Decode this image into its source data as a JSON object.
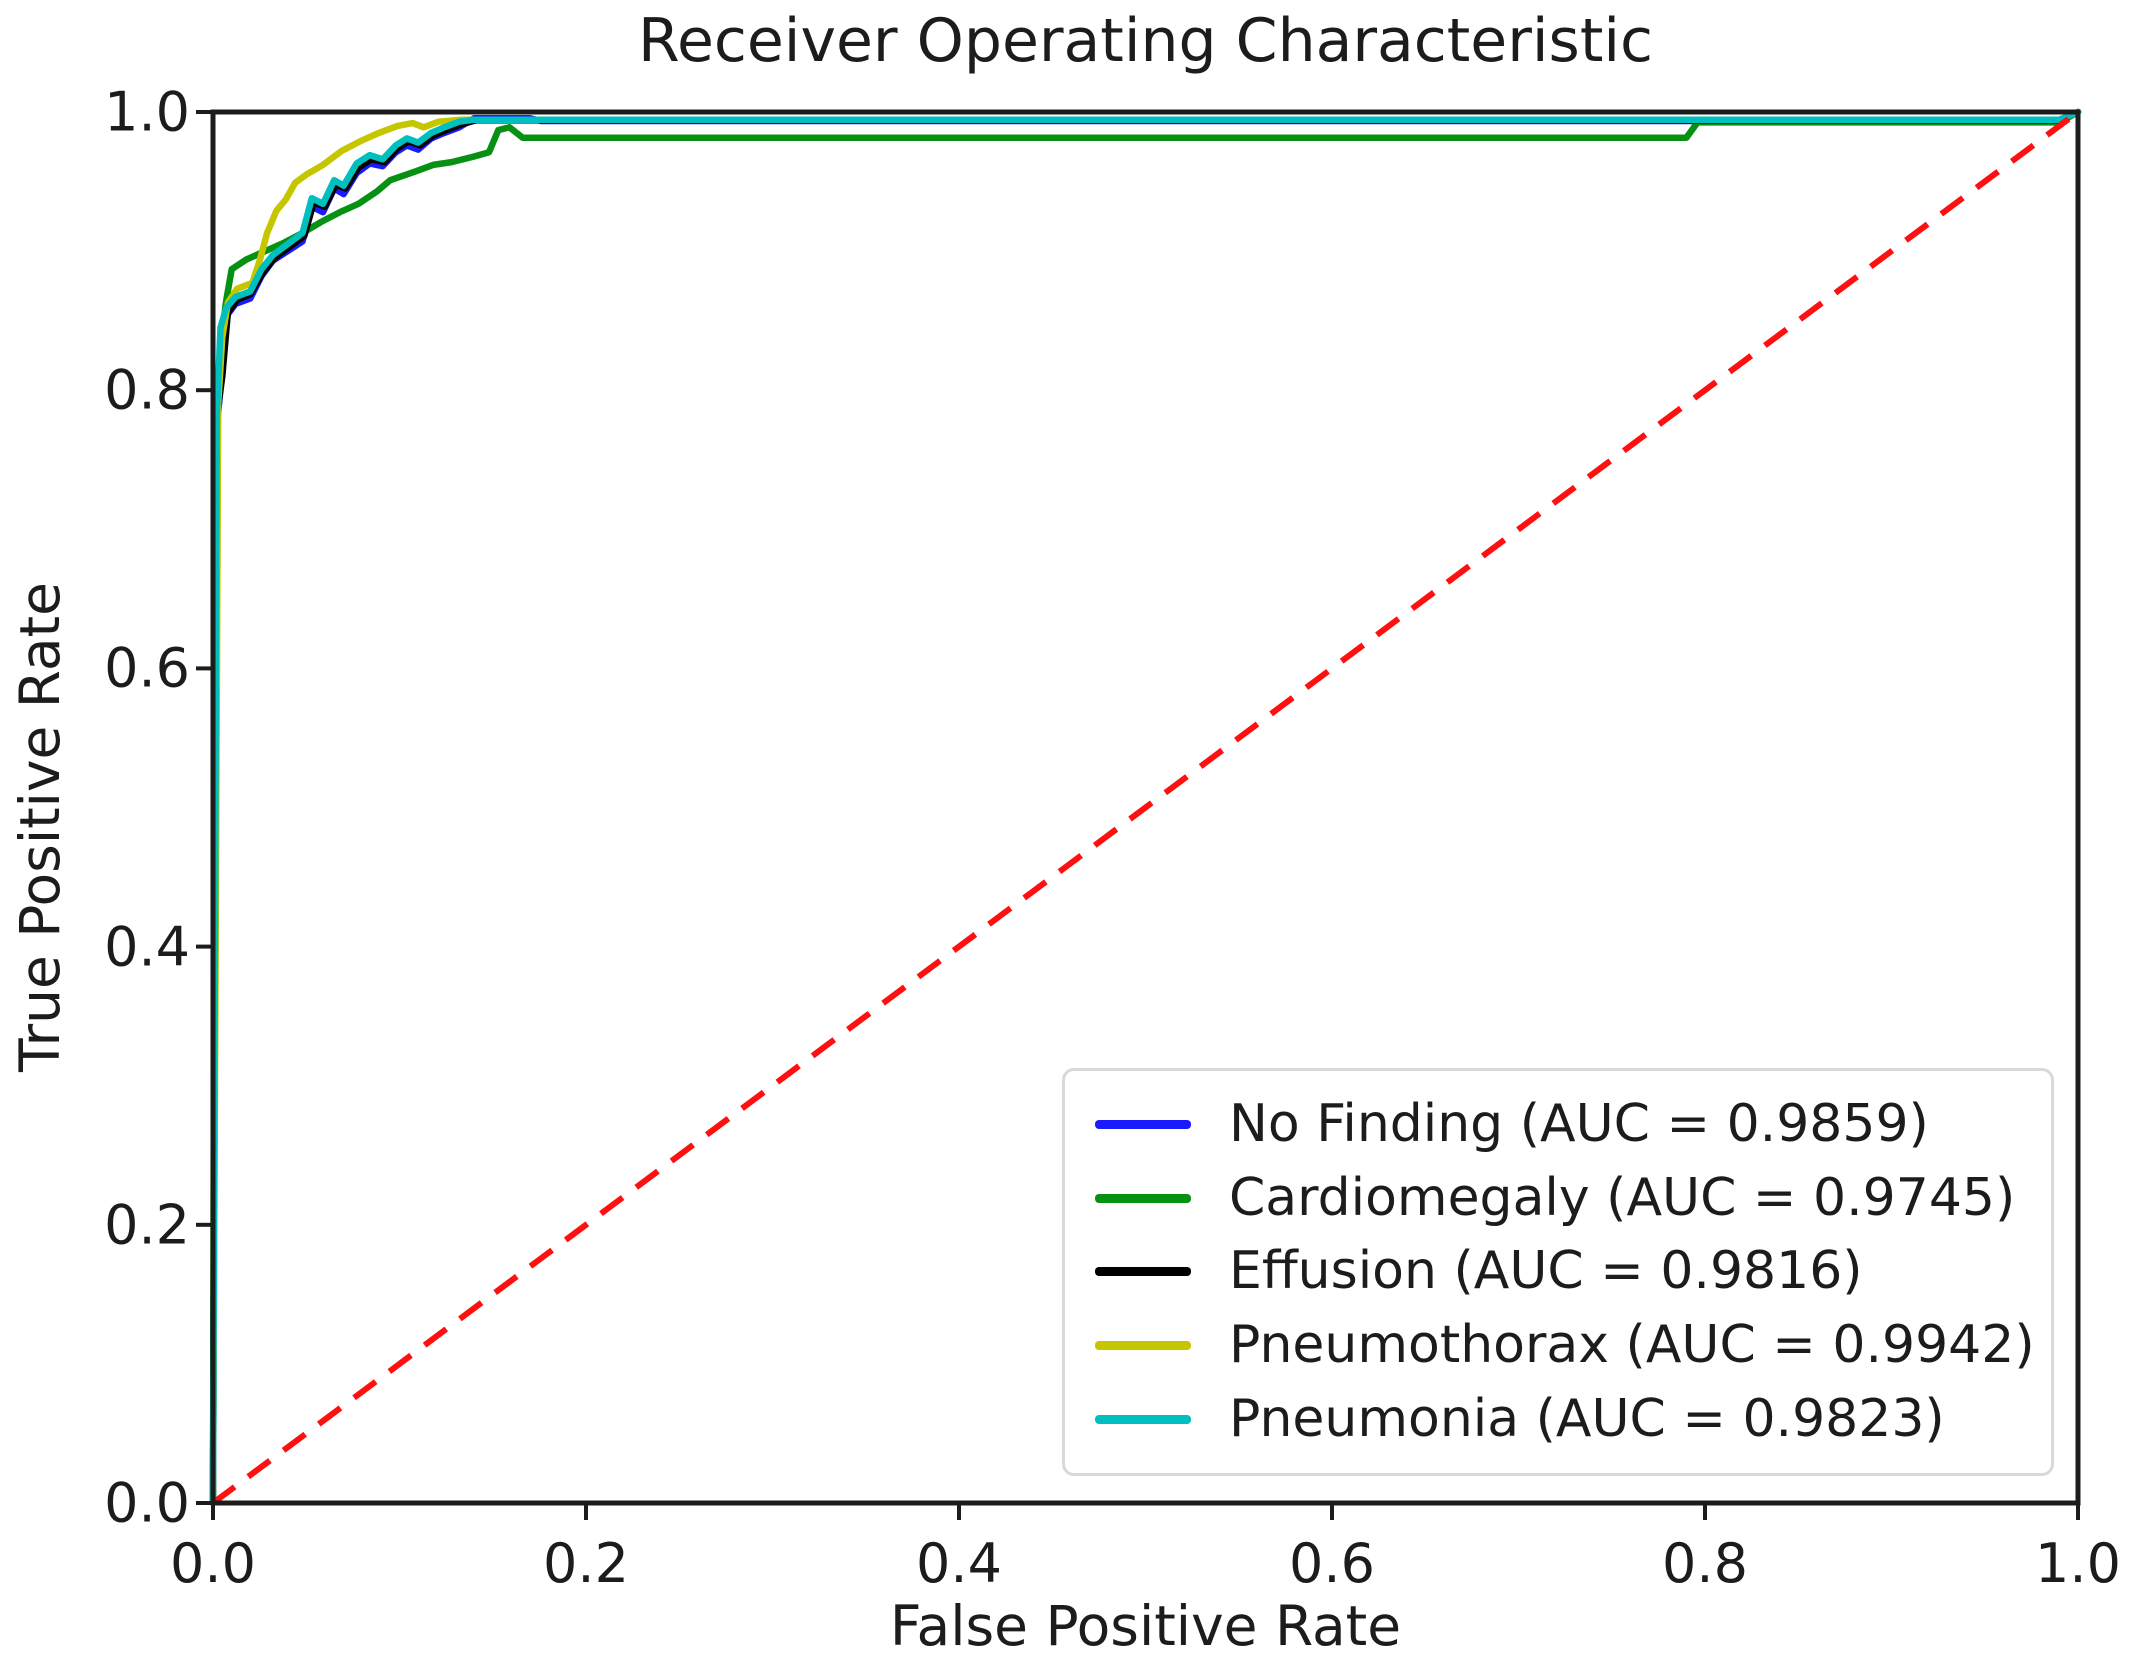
{
  "figure": {
    "background": "#ffffff",
    "text_color": "#1c1c1c",
    "axis_color": "#1c1c1c"
  },
  "chart_data": {
    "type": "line",
    "title": "Receiver Operating Characteristic",
    "xlabel": "False Positive Rate",
    "ylabel": "True Positive Rate",
    "xlim": [
      0.0,
      1.0
    ],
    "ylim": [
      0.0,
      1.0
    ],
    "xticks": [
      "0.0",
      "0.2",
      "0.4",
      "0.6",
      "0.8",
      "1.0"
    ],
    "yticks": [
      "0.0",
      "0.2",
      "0.4",
      "0.6",
      "0.8",
      "1.0"
    ],
    "grid": false,
    "legend": {
      "position": "lower right",
      "border_color": "#d9d9d9",
      "background": "#ffffff"
    },
    "reference_line": {
      "description": "chance diagonal",
      "style": "dashed",
      "color": "#ff0f0f",
      "points": [
        [
          0,
          0
        ],
        [
          1,
          1
        ]
      ]
    },
    "series": [
      {
        "name": "No Finding",
        "auc": 0.9859,
        "legend_label": "No Finding (AUC = 0.9859)",
        "color": "#1a1aff",
        "points": [
          [
            0,
            0
          ],
          [
            0.0022,
            0.775
          ],
          [
            0.004,
            0.802
          ],
          [
            0.007,
            0.853
          ],
          [
            0.012,
            0.862
          ],
          [
            0.02,
            0.866
          ],
          [
            0.026,
            0.882
          ],
          [
            0.032,
            0.893
          ],
          [
            0.04,
            0.9
          ],
          [
            0.048,
            0.907
          ],
          [
            0.053,
            0.932
          ],
          [
            0.059,
            0.928
          ],
          [
            0.065,
            0.945
          ],
          [
            0.07,
            0.941
          ],
          [
            0.077,
            0.956
          ],
          [
            0.084,
            0.963
          ],
          [
            0.091,
            0.961
          ],
          [
            0.098,
            0.971
          ],
          [
            0.104,
            0.976
          ],
          [
            0.11,
            0.973
          ],
          [
            0.117,
            0.981
          ],
          [
            0.124,
            0.985
          ],
          [
            0.132,
            0.989
          ],
          [
            0.14,
            0.9955
          ],
          [
            0.17,
            0.9955
          ],
          [
            0.176,
            0.9935
          ],
          [
            0.99,
            0.9935
          ],
          [
            1,
            1
          ]
        ]
      },
      {
        "name": "Cardiomegaly",
        "auc": 0.9745,
        "legend_label": "Cardiomegaly (AUC = 0.9745)",
        "color": "#079112",
        "points": [
          [
            0,
            0
          ],
          [
            0.0012,
            0.772
          ],
          [
            0.004,
            0.832
          ],
          [
            0.007,
            0.864
          ],
          [
            0.01,
            0.887
          ],
          [
            0.018,
            0.894
          ],
          [
            0.028,
            0.9
          ],
          [
            0.038,
            0.906
          ],
          [
            0.048,
            0.913
          ],
          [
            0.058,
            0.921
          ],
          [
            0.068,
            0.928
          ],
          [
            0.078,
            0.934
          ],
          [
            0.088,
            0.943
          ],
          [
            0.095,
            0.951
          ],
          [
            0.108,
            0.957
          ],
          [
            0.118,
            0.962
          ],
          [
            0.128,
            0.964
          ],
          [
            0.14,
            0.968
          ],
          [
            0.148,
            0.971
          ],
          [
            0.153,
            0.987
          ],
          [
            0.159,
            0.989
          ],
          [
            0.166,
            0.9815
          ],
          [
            0.79,
            0.9815
          ],
          [
            0.796,
            0.9925
          ],
          [
            0.99,
            0.9925
          ],
          [
            1,
            1
          ]
        ]
      },
      {
        "name": "Effusion",
        "auc": 0.9816,
        "legend_label": "Effusion (AUC = 0.9816)",
        "color": "#000000",
        "points": [
          [
            0,
            0
          ],
          [
            0.0018,
            0.778
          ],
          [
            0.005,
            0.81
          ],
          [
            0.008,
            0.856
          ],
          [
            0.013,
            0.865
          ],
          [
            0.02,
            0.869
          ],
          [
            0.027,
            0.885
          ],
          [
            0.033,
            0.895
          ],
          [
            0.041,
            0.903
          ],
          [
            0.049,
            0.911
          ],
          [
            0.054,
            0.935
          ],
          [
            0.06,
            0.932
          ],
          [
            0.066,
            0.948
          ],
          [
            0.071,
            0.945
          ],
          [
            0.078,
            0.96
          ],
          [
            0.085,
            0.966
          ],
          [
            0.092,
            0.964
          ],
          [
            0.099,
            0.974
          ],
          [
            0.105,
            0.979
          ],
          [
            0.111,
            0.976
          ],
          [
            0.118,
            0.983
          ],
          [
            0.125,
            0.987
          ],
          [
            0.133,
            0.991
          ],
          [
            0.141,
            0.994
          ],
          [
            0.99,
            0.994
          ],
          [
            1,
            1
          ]
        ]
      },
      {
        "name": "Pneumothorax",
        "auc": 0.9942,
        "legend_label": "Pneumothorax (AUC = 0.9942)",
        "color": "#c6c600",
        "points": [
          [
            0,
            0
          ],
          [
            0.0028,
            0.79
          ],
          [
            0.005,
            0.838
          ],
          [
            0.008,
            0.863
          ],
          [
            0.013,
            0.873
          ],
          [
            0.021,
            0.877
          ],
          [
            0.025,
            0.893
          ],
          [
            0.029,
            0.913
          ],
          [
            0.034,
            0.929
          ],
          [
            0.039,
            0.937
          ],
          [
            0.044,
            0.949
          ],
          [
            0.05,
            0.955
          ],
          [
            0.059,
            0.962
          ],
          [
            0.069,
            0.972
          ],
          [
            0.079,
            0.979
          ],
          [
            0.089,
            0.985
          ],
          [
            0.099,
            0.99
          ],
          [
            0.107,
            0.992
          ],
          [
            0.113,
            0.989
          ],
          [
            0.121,
            0.993
          ],
          [
            0.133,
            0.9945
          ],
          [
            0.99,
            0.9945
          ],
          [
            1,
            1
          ]
        ]
      },
      {
        "name": "Pneumonia",
        "auc": 0.9823,
        "legend_label": "Pneumonia (AUC = 0.9823)",
        "color": "#00bfbf",
        "points": [
          [
            0,
            0
          ],
          [
            0.002,
            0.78
          ],
          [
            0.004,
            0.845
          ],
          [
            0.007,
            0.859
          ],
          [
            0.012,
            0.867
          ],
          [
            0.02,
            0.871
          ],
          [
            0.026,
            0.887
          ],
          [
            0.032,
            0.897
          ],
          [
            0.04,
            0.905
          ],
          [
            0.048,
            0.913
          ],
          [
            0.053,
            0.938
          ],
          [
            0.059,
            0.934
          ],
          [
            0.065,
            0.951
          ],
          [
            0.07,
            0.947
          ],
          [
            0.077,
            0.963
          ],
          [
            0.084,
            0.969
          ],
          [
            0.091,
            0.966
          ],
          [
            0.098,
            0.976
          ],
          [
            0.104,
            0.981
          ],
          [
            0.11,
            0.978
          ],
          [
            0.117,
            0.985
          ],
          [
            0.124,
            0.989
          ],
          [
            0.132,
            0.993
          ],
          [
            0.14,
            0.9945
          ],
          [
            0.99,
            0.9945
          ],
          [
            1,
            1
          ]
        ]
      }
    ]
  }
}
